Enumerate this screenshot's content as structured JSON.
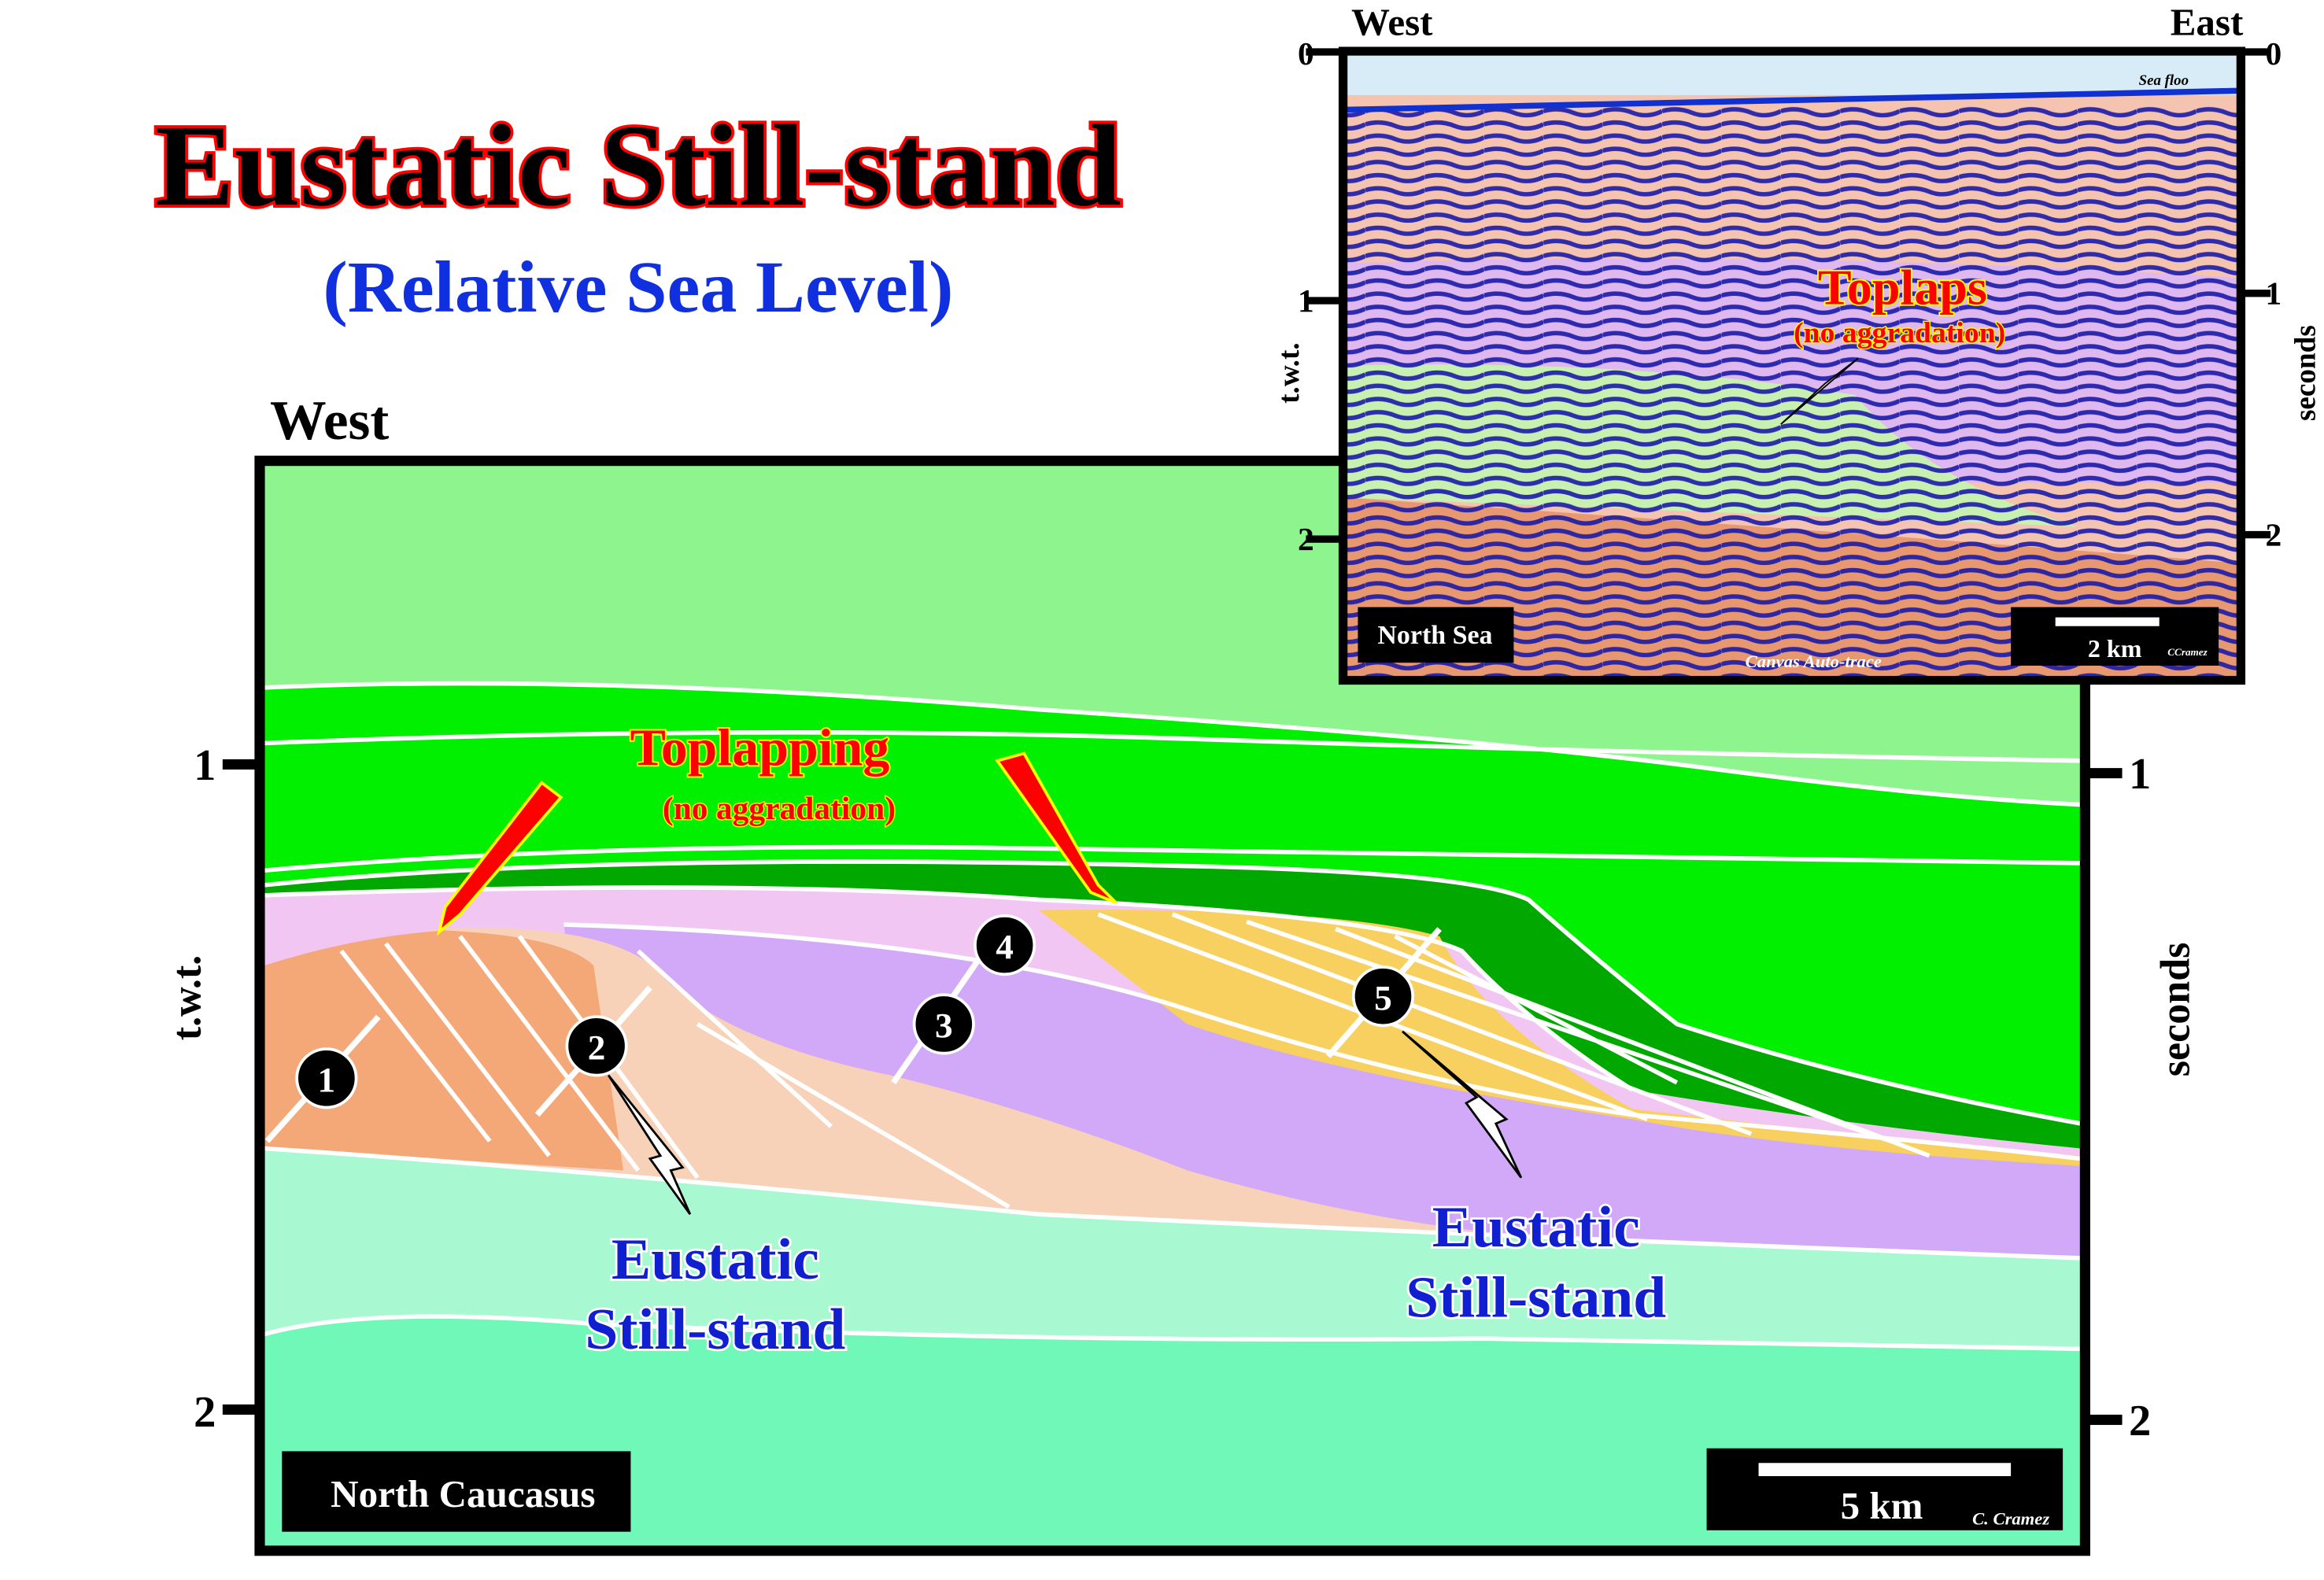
{
  "header": {
    "title": "Eustatic Still-stand",
    "subtitle": "(Relative Sea Level)"
  },
  "main_section": {
    "orientation": "West",
    "left_axis": {
      "ticks": [
        "1",
        "2"
      ],
      "label": "t.w.t."
    },
    "right_axis": {
      "ticks": [
        "1",
        "2"
      ],
      "label": "seconds"
    },
    "annotation": {
      "title": "Toplapping",
      "subtitle": "(no aggradation)"
    },
    "still_stand_labels": [
      {
        "line1": "Eustatic",
        "line2": "Still-stand"
      },
      {
        "line1": "Eustatic",
        "line2": "Still-stand"
      }
    ],
    "markers": [
      "1",
      "2",
      "3",
      "4",
      "5"
    ],
    "location": "North Caucasus",
    "scale": "5 km",
    "credit": "C. Cramez"
  },
  "inset": {
    "west": "West",
    "east": "East",
    "left_ticks": [
      "0",
      "1",
      "2"
    ],
    "right_ticks": [
      "0",
      "1",
      "2"
    ],
    "left_label": "t.w.t.",
    "right_label": "seconds",
    "sea_floor": "Sea floo",
    "annotation": {
      "title": "Toplaps",
      "subtitle": "(no aggradation)"
    },
    "location": "North Sea",
    "scale": "2 km",
    "credit": "CCramez",
    "method": "Canvas Auto-trace"
  }
}
